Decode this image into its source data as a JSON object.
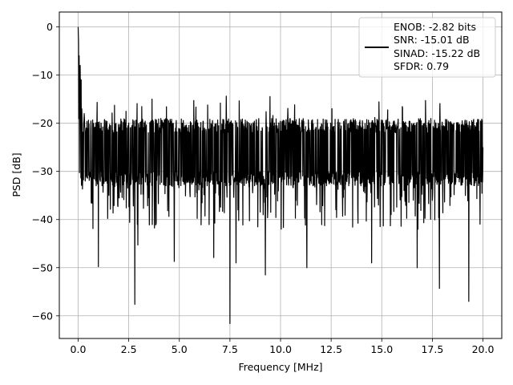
{
  "chart_data": {
    "type": "line",
    "title": "",
    "xlabel": "Frequency [MHz]",
    "ylabel": "PSD [dB]",
    "xlim": [
      -0.93,
      20.93
    ],
    "ylim": [
      -64.7,
      3.1
    ],
    "x_ticks": [
      0.0,
      2.5,
      5.0,
      7.5,
      10.0,
      12.5,
      15.0,
      17.5,
      20.0
    ],
    "x_tick_labels": [
      "0.0",
      "2.5",
      "5.0",
      "7.5",
      "10.0",
      "12.5",
      "15.0",
      "17.5",
      "20.0"
    ],
    "y_ticks": [
      0,
      -10,
      -20,
      -30,
      -40,
      -50,
      -60
    ],
    "y_tick_labels": [
      "0",
      "−10",
      "−20",
      "−30",
      "−40",
      "−50",
      "−60"
    ],
    "grid": true,
    "legend_position": "top-right",
    "line_color": "#000000",
    "legend_lines": [
      "ENOB: -2.82 bits",
      "SNR: -15.01 dB",
      "SINAD: -15.22 dB",
      "SFDR: 0.79"
    ],
    "noise_floor": {
      "upper_db": -19,
      "lower_db": -33,
      "mean_db": -25
    },
    "series": [
      {
        "x": [
          0.0,
          0.02,
          0.05,
          0.08,
          0.1,
          0.12,
          0.15,
          0.18,
          0.2,
          0.25,
          0.3,
          0.35,
          0.4,
          0.45,
          1.0,
          2.8,
          2.95,
          4.75,
          6.7,
          7.5,
          7.8,
          9.25,
          11.3,
          14.5,
          16.75,
          17.85,
          19.3,
          20.0
        ],
        "values": [
          0.0,
          -3.0,
          -6.0,
          -12.0,
          -8.0,
          -16.0,
          -11.0,
          -17.0,
          -20.0,
          -26.0,
          -18.0,
          -32.0,
          -21.0,
          -30.0,
          -49.8,
          -57.6,
          -45.3,
          -48.7,
          -47.9,
          -61.6,
          -49.0,
          -51.5,
          -50.0,
          -49.0,
          -50.0,
          -54.3,
          -57.0,
          -25.0
        ]
      }
    ]
  }
}
